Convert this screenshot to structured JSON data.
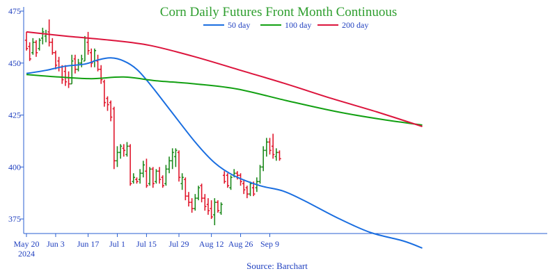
{
  "chart_data": {
    "type": "line",
    "title": "Corn Daily Futures Front Month Continuous",
    "source": "Source: Barchart",
    "x_tick_labels": [
      "May 20",
      "Jun 3",
      "Jun 17",
      "Jul 1",
      "Jul 15",
      "Jul 29",
      "Aug 12",
      "Aug 26",
      "Sep 9"
    ],
    "x_tick_year": "2024",
    "y_ticks": [
      375,
      400,
      425,
      450,
      475
    ],
    "ylim": [
      368,
      477
    ],
    "grid": false,
    "legend_position": "top",
    "colors": {
      "up_bar": "#1e8a1e",
      "down_bar": "#e0182d",
      "ma50": "#1a6ee0",
      "ma100": "#12a012",
      "ma200": "#dc143c",
      "axis": "#2a5fd0",
      "title": "#2e9e2e",
      "text": "#1f3fbf"
    },
    "ohlc": [
      {
        "x": "May 20",
        "o": 461,
        "h": 465,
        "l": 456,
        "c": 457
      },
      {
        "x": "May 21",
        "o": 458,
        "h": 460,
        "l": 451,
        "c": 452
      },
      {
        "x": "May 22",
        "o": 455,
        "h": 462,
        "l": 454,
        "c": 460
      },
      {
        "x": "May 23",
        "o": 460,
        "h": 461,
        "l": 453,
        "c": 455
      },
      {
        "x": "May 24",
        "o": 457,
        "h": 462,
        "l": 456,
        "c": 461
      },
      {
        "x": "May 28",
        "o": 462,
        "h": 467,
        "l": 459,
        "c": 465
      },
      {
        "x": "May 29",
        "o": 463,
        "h": 466,
        "l": 460,
        "c": 464
      },
      {
        "x": "May 30",
        "o": 465,
        "h": 471,
        "l": 458,
        "c": 460
      },
      {
        "x": "May 31",
        "o": 460,
        "h": 462,
        "l": 454,
        "c": 455
      },
      {
        "x": "Jun 3",
        "o": 455,
        "h": 456,
        "l": 447,
        "c": 449
      },
      {
        "x": "Jun 4",
        "o": 451,
        "h": 453,
        "l": 446,
        "c": 448
      },
      {
        "x": "Jun 5",
        "o": 448,
        "h": 449,
        "l": 440,
        "c": 442
      },
      {
        "x": "Jun 6",
        "o": 446,
        "h": 449,
        "l": 439,
        "c": 441
      },
      {
        "x": "Jun 7",
        "o": 443,
        "h": 446,
        "l": 438,
        "c": 440
      },
      {
        "x": "Jun 10",
        "o": 440,
        "h": 454,
        "l": 440,
        "c": 451
      },
      {
        "x": "Jun 11",
        "o": 452,
        "h": 454,
        "l": 445,
        "c": 447
      },
      {
        "x": "Jun 12",
        "o": 447,
        "h": 452,
        "l": 446,
        "c": 450
      },
      {
        "x": "Jun 13",
        "o": 450,
        "h": 454,
        "l": 448,
        "c": 452
      },
      {
        "x": "Jun 14",
        "o": 451,
        "h": 463,
        "l": 451,
        "c": 462
      },
      {
        "x": "Jun 17",
        "o": 460,
        "h": 465,
        "l": 454,
        "c": 456
      },
      {
        "x": "Jun 18",
        "o": 455,
        "h": 457,
        "l": 448,
        "c": 450
      },
      {
        "x": "Jun 20",
        "o": 451,
        "h": 457,
        "l": 448,
        "c": 456
      },
      {
        "x": "Jun 21",
        "o": 451,
        "h": 454,
        "l": 446,
        "c": 447
      },
      {
        "x": "Jun 24",
        "o": 447,
        "h": 449,
        "l": 440,
        "c": 442
      },
      {
        "x": "Jun 25",
        "o": 441,
        "h": 442,
        "l": 429,
        "c": 431
      },
      {
        "x": "Jun 26",
        "o": 433,
        "h": 434,
        "l": 427,
        "c": 430
      },
      {
        "x": "Jun 27",
        "o": 431,
        "h": 432,
        "l": 422,
        "c": 424
      },
      {
        "x": "Jun 28",
        "o": 428,
        "h": 429,
        "l": 399,
        "c": 403
      },
      {
        "x": "Jul 1",
        "o": 403,
        "h": 410,
        "l": 400,
        "c": 407
      },
      {
        "x": "Jul 2",
        "o": 407,
        "h": 411,
        "l": 404,
        "c": 410
      },
      {
        "x": "Jul 3",
        "o": 409,
        "h": 411,
        "l": 405,
        "c": 408
      },
      {
        "x": "Jul 5",
        "o": 406,
        "h": 412,
        "l": 405,
        "c": 410
      },
      {
        "x": "Jul 8",
        "o": 410,
        "h": 411,
        "l": 391,
        "c": 392
      },
      {
        "x": "Jul 9",
        "o": 393,
        "h": 397,
        "l": 392,
        "c": 395
      },
      {
        "x": "Jul 10",
        "o": 394,
        "h": 395,
        "l": 392,
        "c": 393
      },
      {
        "x": "Jul 11",
        "o": 394,
        "h": 399,
        "l": 392,
        "c": 397
      },
      {
        "x": "Jul 12",
        "o": 397,
        "h": 403,
        "l": 395,
        "c": 401
      },
      {
        "x": "Jul 15",
        "o": 398,
        "h": 404,
        "l": 390,
        "c": 391
      },
      {
        "x": "Jul 16",
        "o": 392,
        "h": 400,
        "l": 391,
        "c": 399
      },
      {
        "x": "Jul 17",
        "o": 399,
        "h": 400,
        "l": 390,
        "c": 392
      },
      {
        "x": "Jul 18",
        "o": 393,
        "h": 399,
        "l": 392,
        "c": 398
      },
      {
        "x": "Jul 19",
        "o": 398,
        "h": 400,
        "l": 392,
        "c": 394
      },
      {
        "x": "Jul 22",
        "o": 395,
        "h": 396,
        "l": 390,
        "c": 391
      },
      {
        "x": "Jul 23",
        "o": 392,
        "h": 401,
        "l": 391,
        "c": 399
      },
      {
        "x": "Jul 24",
        "o": 399,
        "h": 405,
        "l": 397,
        "c": 403
      },
      {
        "x": "Jul 25",
        "o": 403,
        "h": 409,
        "l": 399,
        "c": 407
      },
      {
        "x": "Jul 26",
        "o": 405,
        "h": 409,
        "l": 400,
        "c": 408
      },
      {
        "x": "Jul 29",
        "o": 407,
        "h": 408,
        "l": 393,
        "c": 395
      },
      {
        "x": "Jul 30",
        "o": 392,
        "h": 397,
        "l": 389,
        "c": 395
      },
      {
        "x": "Jul 31",
        "o": 394,
        "h": 395,
        "l": 384,
        "c": 386
      },
      {
        "x": "Aug 1",
        "o": 386,
        "h": 388,
        "l": 381,
        "c": 383
      },
      {
        "x": "Aug 2",
        "o": 383,
        "h": 385,
        "l": 378,
        "c": 380
      },
      {
        "x": "Aug 5",
        "o": 380,
        "h": 387,
        "l": 379,
        "c": 385
      },
      {
        "x": "Aug 6",
        "o": 385,
        "h": 391,
        "l": 384,
        "c": 390
      },
      {
        "x": "Aug 7",
        "o": 391,
        "h": 392,
        "l": 383,
        "c": 385
      },
      {
        "x": "Aug 8",
        "o": 385,
        "h": 387,
        "l": 379,
        "c": 381
      },
      {
        "x": "Aug 9",
        "o": 382,
        "h": 385,
        "l": 377,
        "c": 379
      },
      {
        "x": "Aug 12",
        "o": 380,
        "h": 384,
        "l": 375,
        "c": 376
      },
      {
        "x": "Aug 13",
        "o": 377,
        "h": 385,
        "l": 372,
        "c": 383
      },
      {
        "x": "Aug 14",
        "o": 383,
        "h": 384,
        "l": 378,
        "c": 379
      },
      {
        "x": "Aug 15",
        "o": 378,
        "h": 383,
        "l": 377,
        "c": 382
      },
      {
        "x": "Aug 19",
        "o": 396,
        "h": 398,
        "l": 392,
        "c": 393
      },
      {
        "x": "Aug 20",
        "o": 396,
        "h": 397,
        "l": 390,
        "c": 391
      },
      {
        "x": "Aug 21",
        "o": 390,
        "h": 396,
        "l": 389,
        "c": 395
      },
      {
        "x": "Aug 22",
        "o": 396,
        "h": 399,
        "l": 395,
        "c": 397
      },
      {
        "x": "Aug 23",
        "o": 397,
        "h": 398,
        "l": 394,
        "c": 396
      },
      {
        "x": "Aug 26",
        "o": 396,
        "h": 397,
        "l": 391,
        "c": 393
      },
      {
        "x": "Aug 27",
        "o": 392,
        "h": 394,
        "l": 387,
        "c": 389
      },
      {
        "x": "Aug 28",
        "o": 390,
        "h": 391,
        "l": 385,
        "c": 387
      },
      {
        "x": "Aug 29",
        "o": 387,
        "h": 393,
        "l": 386,
        "c": 392
      },
      {
        "x": "Aug 30",
        "o": 390,
        "h": 393,
        "l": 386,
        "c": 387
      },
      {
        "x": "Sep 3",
        "o": 390,
        "h": 395,
        "l": 388,
        "c": 393
      },
      {
        "x": "Sep 4",
        "o": 393,
        "h": 401,
        "l": 392,
        "c": 400
      },
      {
        "x": "Sep 5",
        "o": 400,
        "h": 410,
        "l": 398,
        "c": 408
      },
      {
        "x": "Sep 6",
        "o": 408,
        "h": 414,
        "l": 405,
        "c": 412
      },
      {
        "x": "Sep 9",
        "o": 412,
        "h": 414,
        "l": 406,
        "c": 408
      },
      {
        "x": "Sep 10",
        "o": 410,
        "h": 416,
        "l": 404,
        "c": 406
      },
      {
        "x": "Sep 11",
        "o": 405,
        "h": 409,
        "l": 403,
        "c": 407
      },
      {
        "x": "Sep 12",
        "o": 407,
        "h": 408,
        "l": 403,
        "c": 404
      }
    ],
    "series": [
      {
        "name": "50 day",
        "color": "#1a6ee0",
        "points": [
          [
            0,
            445
          ],
          [
            6,
            446.5
          ],
          [
            12,
            448.5
          ],
          [
            18,
            449.5
          ],
          [
            22,
            451.5
          ],
          [
            26,
            452.5
          ],
          [
            30,
            451
          ],
          [
            34,
            447
          ],
          [
            38,
            440
          ],
          [
            44,
            428
          ],
          [
            52,
            412
          ],
          [
            58,
            402
          ],
          [
            64,
            395.8
          ],
          [
            72,
            391
          ],
          [
            79,
            388.5
          ],
          [
            86,
            383.5
          ],
          [
            96,
            375.4
          ],
          [
            106,
            368.5
          ],
          [
            116,
            364.5
          ],
          [
            122,
            361
          ]
        ]
      },
      {
        "name": "100 day",
        "color": "#12a012",
        "points": [
          [
            0,
            444.5
          ],
          [
            10,
            443.3
          ],
          [
            20,
            442.5
          ],
          [
            30,
            443.3
          ],
          [
            40,
            441.5
          ],
          [
            52,
            440
          ],
          [
            65,
            437.5
          ],
          [
            80,
            432
          ],
          [
            96,
            426.5
          ],
          [
            110,
            422.8
          ],
          [
            122,
            420.2
          ]
        ]
      },
      {
        "name": "200 day",
        "color": "#dc143c",
        "points": [
          [
            0,
            465
          ],
          [
            12,
            463
          ],
          [
            26,
            461
          ],
          [
            38,
            458.5
          ],
          [
            52,
            453
          ],
          [
            66,
            446.5
          ],
          [
            80,
            440
          ],
          [
            94,
            433
          ],
          [
            108,
            426.5
          ],
          [
            122,
            419.5
          ]
        ]
      }
    ]
  }
}
